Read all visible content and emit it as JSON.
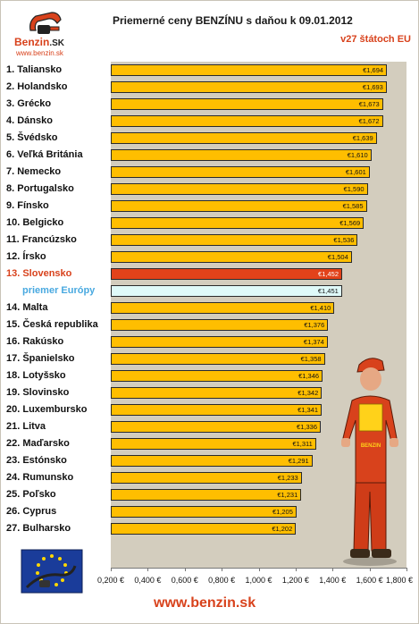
{
  "header": {
    "title": "Priemerné ceny BENZÍNU s daňou k 09.01.2012",
    "subtitle": "v27 štátoch EU",
    "logo_text": "Benzin",
    "logo_suffix": ".SK",
    "logo_url": "www.benzin.sk"
  },
  "footer": {
    "url": "www.benzin.sk"
  },
  "colors": {
    "bar": "#ffbe00",
    "highlight": "#e2421a",
    "average": "#dffaf9",
    "accent": "#d8421c",
    "plot_background": "#d3cdbe"
  },
  "chart_data": {
    "type": "bar",
    "orientation": "horizontal",
    "title": "Priemerné ceny BENZÍNU s daňou k 09.01.2012",
    "subtitle": "v27 štátoch EU",
    "xlim": [
      0.2,
      1.8
    ],
    "x_ticks": [
      "0,200 €",
      "0,400 €",
      "0,600 €",
      "0,800 €",
      "1,000 €",
      "1,200 €",
      "1,400 €",
      "1,600 €",
      "1,800 €"
    ],
    "tick_values": [
      0.2,
      0.4,
      0.6,
      0.8,
      1.0,
      1.2,
      1.4,
      1.6,
      1.8
    ],
    "categories": [
      "1. Taliansko",
      "2. Holandsko",
      "3. Grécko",
      "4. Dánsko",
      "5. Švédsko",
      "6. Veľká Británia",
      "7. Nemecko",
      "8. Portugalsko",
      "9. Fínsko",
      "10. Belgicko",
      "11. Francúzsko",
      "12. Írsko",
      "13. Slovensko",
      "priemer Európy",
      "14. Malta",
      "15. Česká republika",
      "16. Rakúsko",
      "17. Španielsko",
      "18. Lotyšsko",
      "19. Slovinsko",
      "20. Luxembursko",
      "21. Litva",
      "22. Maďarsko",
      "23. Estónsko",
      "24. Rumunsko",
      "25. Poľsko",
      "26. Cyprus",
      "27. Bulharsko"
    ],
    "values": [
      1.694,
      1.693,
      1.673,
      1.672,
      1.639,
      1.61,
      1.601,
      1.59,
      1.585,
      1.569,
      1.536,
      1.504,
      1.452,
      1.451,
      1.41,
      1.376,
      1.374,
      1.358,
      1.346,
      1.342,
      1.341,
      1.336,
      1.311,
      1.291,
      1.233,
      1.231,
      1.205,
      1.202
    ],
    "value_labels": [
      "€1,694",
      "€1,693",
      "€1,673",
      "€1,672",
      "€1,639",
      "€1,610",
      "€1,601",
      "€1,590",
      "€1,585",
      "€1,569",
      "€1,536",
      "€1,504",
      "€1,452",
      "€1,451",
      "€1,410",
      "€1,376",
      "€1,374",
      "€1,358",
      "€1,346",
      "€1,342",
      "€1,341",
      "€1,336",
      "€1,311",
      "€1,291",
      "€1,233",
      "€1,231",
      "€1,205",
      "€1,202"
    ],
    "highlight_index": 12,
    "average_index": 13
  }
}
